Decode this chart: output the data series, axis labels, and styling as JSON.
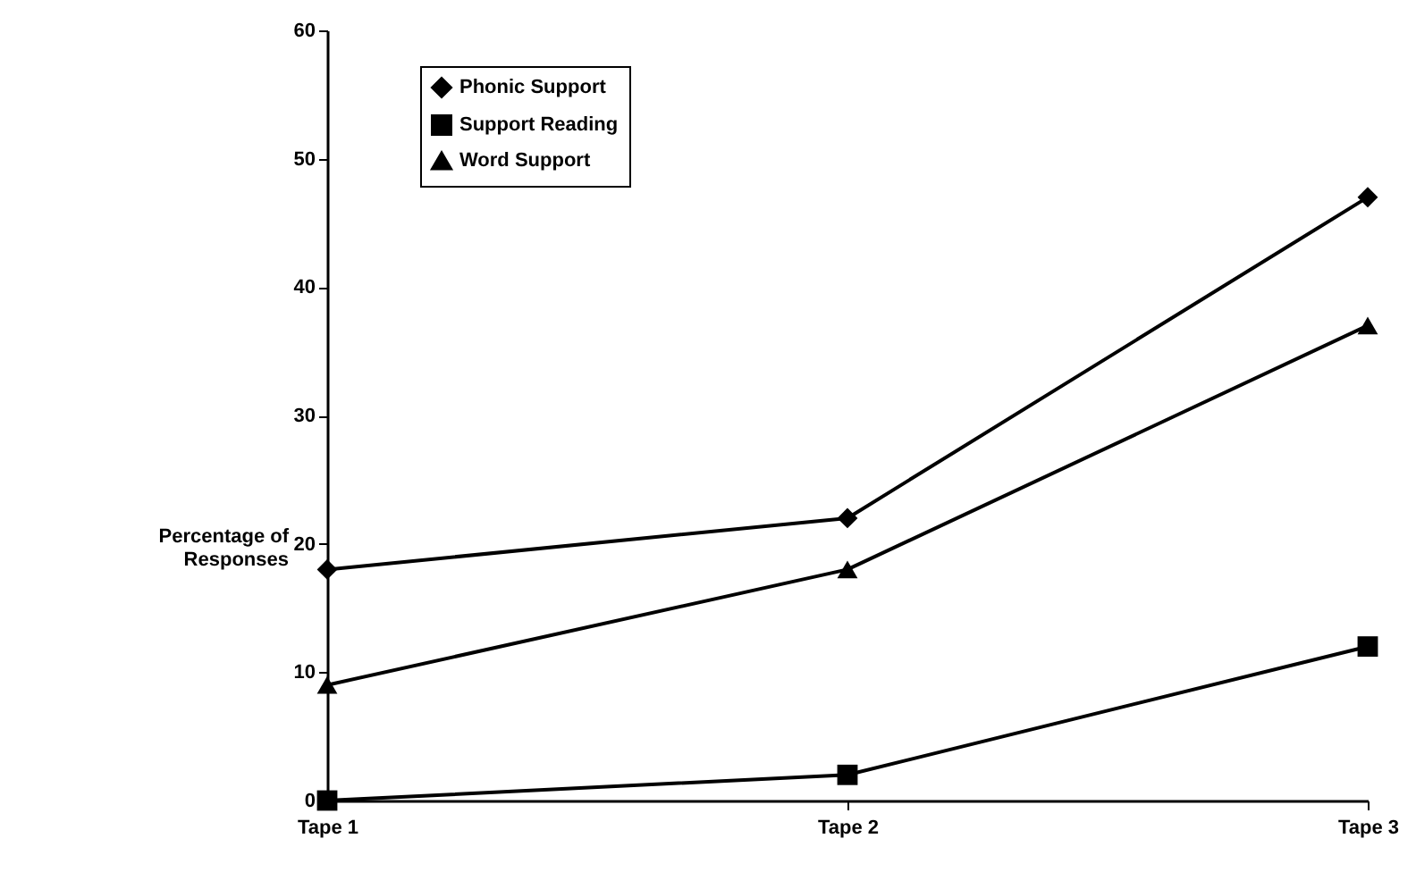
{
  "chart_data": {
    "type": "line",
    "categories": [
      "Tape 1",
      "Tape 2",
      "Tape 3"
    ],
    "ylabel": "Percentage of Responses",
    "ylim": [
      0,
      60
    ],
    "yticks": [
      0,
      10,
      20,
      30,
      40,
      50,
      60
    ],
    "grid": false,
    "legend": "top left",
    "series": [
      {
        "name": "Phonic Support",
        "color": "#000000",
        "marker": "diamond",
        "values": [
          18,
          22,
          47
        ]
      },
      {
        "name": "Support Reading",
        "color": "#000000",
        "marker": "square",
        "values": [
          0,
          2,
          12
        ]
      },
      {
        "name": "Word Support",
        "color": "#000000",
        "marker": "triangle",
        "values": [
          9,
          18,
          37
        ]
      }
    ]
  }
}
